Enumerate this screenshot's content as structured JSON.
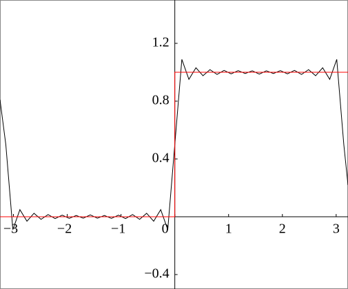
{
  "chart_data": {
    "type": "line",
    "x": [
      -3.25,
      -3.142,
      -3.011,
      -2.88,
      -2.749,
      -2.618,
      -2.487,
      -2.356,
      -2.225,
      -2.094,
      -1.963,
      -1.833,
      -1.702,
      -1.571,
      -1.44,
      -1.309,
      -1.178,
      -1.047,
      -0.916,
      -0.785,
      -0.654,
      -0.524,
      -0.393,
      -0.262,
      -0.131,
      0,
      0.131,
      0.262,
      0.393,
      0.524,
      0.654,
      0.785,
      0.916,
      1.047,
      1.178,
      1.309,
      1.44,
      1.571,
      1.702,
      1.833,
      1.963,
      2.094,
      2.225,
      2.356,
      2.487,
      2.618,
      2.749,
      2.88,
      3.011,
      3.142,
      3.22
    ],
    "series": [
      {
        "color": "#000000",
        "values": [
          0.81,
          0.5,
          -0.089,
          0.049,
          -0.031,
          0.024,
          -0.018,
          0.015,
          -0.013,
          0.011,
          -0.011,
          0.009,
          -0.01,
          0.013,
          -0.01,
          0.009,
          -0.011,
          0.011,
          -0.013,
          0.015,
          -0.018,
          0.024,
          -0.031,
          0.049,
          -0.089,
          0.5,
          1.089,
          0.951,
          1.031,
          0.976,
          1.018,
          0.985,
          1.013,
          0.989,
          1.011,
          0.991,
          1.01,
          0.987,
          1.01,
          0.991,
          1.011,
          0.989,
          1.013,
          0.985,
          1.018,
          0.976,
          1.031,
          0.951,
          1.089,
          0.5,
          0.22
        ]
      },
      {
        "color": "#ff0000",
        "x": [
          -3.25,
          0,
          0,
          3.22
        ],
        "values": [
          0,
          0,
          1,
          1
        ]
      }
    ],
    "xlim": [
      -3.25,
      3.22
    ],
    "ylim": [
      -0.5,
      1.5
    ],
    "xticks": [
      {
        "value": -3,
        "label": "−3"
      },
      {
        "value": -2,
        "label": "−2"
      },
      {
        "value": -1,
        "label": "−1"
      },
      0,
      1,
      2,
      3
    ],
    "yticks": [
      {
        "value": -0.4,
        "label": "−0.4"
      },
      0.4,
      0.8,
      1.2
    ]
  }
}
